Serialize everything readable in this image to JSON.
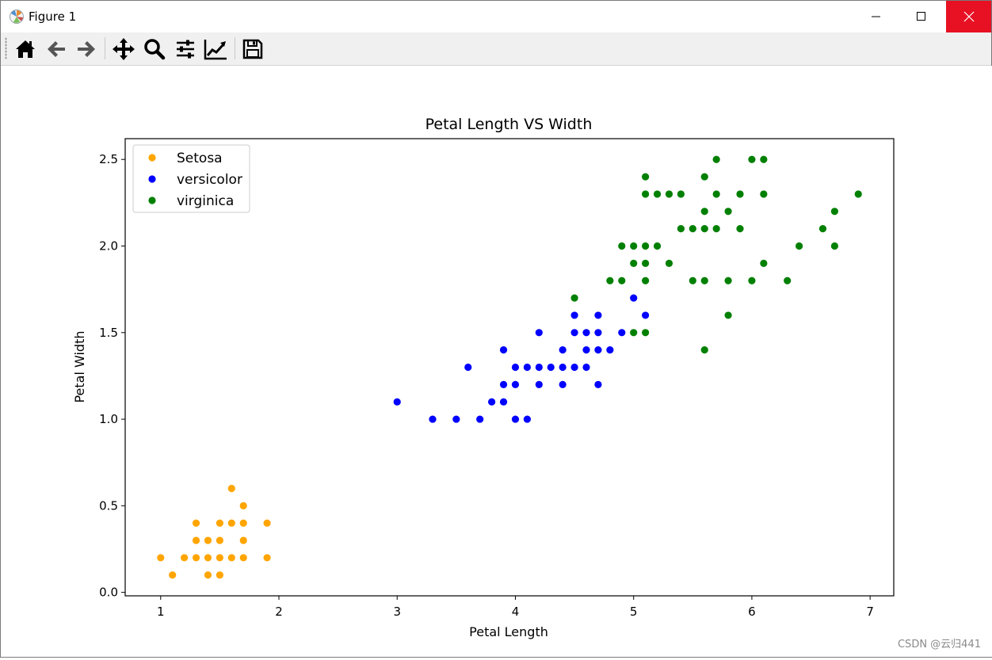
{
  "window": {
    "title": "Figure 1",
    "controls": {
      "minimize": "minimize-icon",
      "maximize": "maximize-icon",
      "close": "close-icon"
    }
  },
  "toolbar": {
    "tools": [
      "home-icon",
      "back-arrow-icon",
      "forward-arrow-icon",
      "pan-icon",
      "zoom-icon",
      "configure-subplots-icon",
      "edit-axis-icon",
      "save-icon"
    ]
  },
  "watermark": "CSDN @云归441",
  "colors": {
    "setosa": "#ffa500",
    "versicolor": "#0000ff",
    "virginica": "#008000",
    "close_button": "#e81123"
  },
  "chart_data": {
    "type": "scatter",
    "title": "Petal Length VS Width",
    "xlabel": "Petal Length",
    "ylabel": "Petal Width",
    "xlim": [
      0.7,
      7.2
    ],
    "ylim": [
      -0.02,
      2.62
    ],
    "xticks": [
      "1",
      "2",
      "3",
      "4",
      "5",
      "6",
      "7"
    ],
    "yticks": [
      "0.0",
      "0.5",
      "1.0",
      "1.5",
      "2.0",
      "2.5"
    ],
    "legend_position": "top-left",
    "grid": false,
    "series": [
      {
        "name": "Setosa",
        "color": "#ffa500",
        "points": [
          [
            1.0,
            0.2
          ],
          [
            1.1,
            0.1
          ],
          [
            1.2,
            0.2
          ],
          [
            1.3,
            0.2
          ],
          [
            1.3,
            0.3
          ],
          [
            1.3,
            0.4
          ],
          [
            1.4,
            0.1
          ],
          [
            1.4,
            0.2
          ],
          [
            1.4,
            0.3
          ],
          [
            1.5,
            0.1
          ],
          [
            1.5,
            0.2
          ],
          [
            1.5,
            0.3
          ],
          [
            1.5,
            0.4
          ],
          [
            1.6,
            0.2
          ],
          [
            1.6,
            0.4
          ],
          [
            1.6,
            0.6
          ],
          [
            1.7,
            0.2
          ],
          [
            1.7,
            0.3
          ],
          [
            1.7,
            0.4
          ],
          [
            1.7,
            0.5
          ],
          [
            1.9,
            0.2
          ],
          [
            1.9,
            0.4
          ]
        ]
      },
      {
        "name": "versicolor",
        "color": "#0000ff",
        "points": [
          [
            3.0,
            1.1
          ],
          [
            3.3,
            1.0
          ],
          [
            3.5,
            1.0
          ],
          [
            3.6,
            1.3
          ],
          [
            3.7,
            1.0
          ],
          [
            3.8,
            1.1
          ],
          [
            3.9,
            1.1
          ],
          [
            3.9,
            1.2
          ],
          [
            3.9,
            1.4
          ],
          [
            4.0,
            1.0
          ],
          [
            4.0,
            1.2
          ],
          [
            4.0,
            1.3
          ],
          [
            4.1,
            1.0
          ],
          [
            4.1,
            1.3
          ],
          [
            4.2,
            1.2
          ],
          [
            4.2,
            1.3
          ],
          [
            4.2,
            1.5
          ],
          [
            4.3,
            1.3
          ],
          [
            4.4,
            1.2
          ],
          [
            4.4,
            1.3
          ],
          [
            4.4,
            1.4
          ],
          [
            4.5,
            1.3
          ],
          [
            4.5,
            1.5
          ],
          [
            4.5,
            1.6
          ],
          [
            4.6,
            1.3
          ],
          [
            4.6,
            1.4
          ],
          [
            4.6,
            1.5
          ],
          [
            4.7,
            1.2
          ],
          [
            4.7,
            1.4
          ],
          [
            4.7,
            1.5
          ],
          [
            4.7,
            1.6
          ],
          [
            4.8,
            1.4
          ],
          [
            4.9,
            1.5
          ],
          [
            5.0,
            1.7
          ],
          [
            5.1,
            1.6
          ]
        ]
      },
      {
        "name": "virginica",
        "color": "#008000",
        "points": [
          [
            4.5,
            1.7
          ],
          [
            4.8,
            1.8
          ],
          [
            4.9,
            1.8
          ],
          [
            4.9,
            2.0
          ],
          [
            5.0,
            1.5
          ],
          [
            5.0,
            1.9
          ],
          [
            5.0,
            2.0
          ],
          [
            5.1,
            1.5
          ],
          [
            5.1,
            1.8
          ],
          [
            5.1,
            1.9
          ],
          [
            5.1,
            2.0
          ],
          [
            5.1,
            2.3
          ],
          [
            5.1,
            2.4
          ],
          [
            5.2,
            2.0
          ],
          [
            5.2,
            2.3
          ],
          [
            5.3,
            1.9
          ],
          [
            5.3,
            2.3
          ],
          [
            5.4,
            2.1
          ],
          [
            5.4,
            2.3
          ],
          [
            5.5,
            1.8
          ],
          [
            5.5,
            2.1
          ],
          [
            5.6,
            1.4
          ],
          [
            5.6,
            1.8
          ],
          [
            5.6,
            2.1
          ],
          [
            5.6,
            2.2
          ],
          [
            5.6,
            2.4
          ],
          [
            5.7,
            2.1
          ],
          [
            5.7,
            2.3
          ],
          [
            5.7,
            2.5
          ],
          [
            5.8,
            1.6
          ],
          [
            5.8,
            1.8
          ],
          [
            5.8,
            2.2
          ],
          [
            5.9,
            2.1
          ],
          [
            5.9,
            2.3
          ],
          [
            6.0,
            1.8
          ],
          [
            6.0,
            2.5
          ],
          [
            6.1,
            1.9
          ],
          [
            6.1,
            2.3
          ],
          [
            6.1,
            2.5
          ],
          [
            6.3,
            1.8
          ],
          [
            6.4,
            2.0
          ],
          [
            6.6,
            2.1
          ],
          [
            6.7,
            2.0
          ],
          [
            6.7,
            2.2
          ],
          [
            6.9,
            2.3
          ]
        ]
      }
    ]
  }
}
